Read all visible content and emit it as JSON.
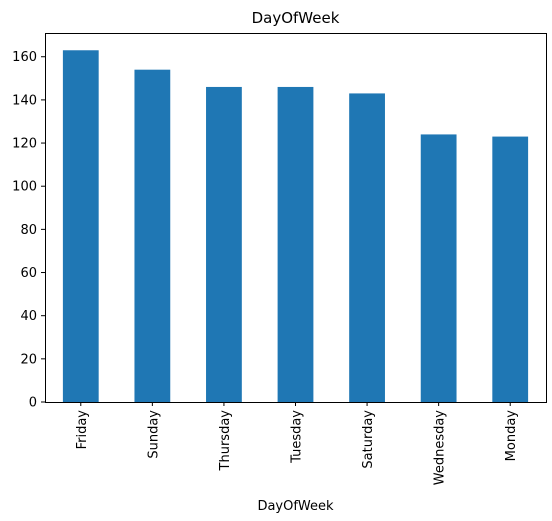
{
  "chart_data": {
    "type": "bar",
    "title": "DayOfWeek",
    "xlabel": "DayOfWeek",
    "ylabel": "",
    "categories": [
      "Friday",
      "Sunday",
      "Thursday",
      "Tuesday",
      "Saturday",
      "Wednesday",
      "Monday"
    ],
    "values": [
      163,
      154,
      146,
      146,
      143,
      124,
      123
    ],
    "ylim": [
      0,
      171
    ],
    "yticks": [
      0,
      20,
      40,
      60,
      80,
      100,
      120,
      140,
      160
    ],
    "bar_color": "#1f77b4",
    "grid": false,
    "legend": "none"
  }
}
